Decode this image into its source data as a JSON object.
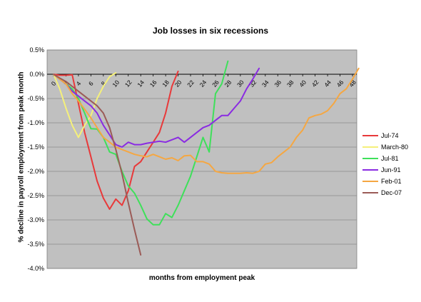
{
  "chart_data": {
    "type": "line",
    "title": "Job losses in six recessions",
    "xlabel": "months from employment peak",
    "ylabel": "% decline in payroll employment from peak month",
    "xlim": [
      0,
      49
    ],
    "ylim": [
      -4.0,
      0.5
    ],
    "x_ticks": [
      0,
      2,
      4,
      6,
      8,
      10,
      12,
      14,
      16,
      18,
      20,
      22,
      24,
      26,
      28,
      30,
      32,
      34,
      36,
      38,
      40,
      42,
      44,
      46,
      48
    ],
    "y_ticks": [
      "0.5%",
      "0.0%",
      "-0.5%",
      "-1.0%",
      "-1.5%",
      "-2.0%",
      "-2.5%",
      "-3.0%",
      "-3.5%",
      "-4.0%"
    ],
    "y_tick_values": [
      0.5,
      0.0,
      -0.5,
      -1.0,
      -1.5,
      -2.0,
      -2.5,
      -3.0,
      -3.5,
      -4.0
    ],
    "grid": "horizontal",
    "background": "#c0c0c0",
    "legend_position": "right",
    "series": [
      {
        "name": "Jul-74",
        "color": "#e8393a",
        "values": [
          0,
          -0.02,
          -0.02,
          -0.01,
          -0.6,
          -1.2,
          -1.7,
          -2.2,
          -2.55,
          -2.78,
          -2.57,
          -2.7,
          -2.4,
          -1.9,
          -1.8,
          -1.6,
          -1.4,
          -1.2,
          -0.8,
          -0.25,
          0.06
        ]
      },
      {
        "name": "March-80",
        "color": "#f5f07a",
        "values": [
          0,
          -0.3,
          -0.7,
          -1.05,
          -1.3,
          -1.05,
          -0.85,
          -0.5,
          -0.25,
          -0.05,
          0.03
        ]
      },
      {
        "name": "Jul-81",
        "color": "#3ee05a",
        "values": [
          0,
          -0.1,
          -0.2,
          -0.3,
          -0.5,
          -0.8,
          -1.12,
          -1.13,
          -1.3,
          -1.6,
          -1.65,
          -2.0,
          -2.3,
          -2.45,
          -2.7,
          -2.98,
          -3.1,
          -3.1,
          -2.87,
          -2.95,
          -2.7,
          -2.4,
          -2.1,
          -1.7,
          -1.3,
          -1.6,
          -0.4,
          -0.2,
          0.27
        ]
      },
      {
        "name": "Jun-91",
        "color": "#8a2be2",
        "values": [
          0,
          -0.1,
          -0.2,
          -0.35,
          -0.45,
          -0.55,
          -0.65,
          -0.8,
          -1.05,
          -1.25,
          -1.45,
          -1.5,
          -1.4,
          -1.45,
          -1.45,
          -1.42,
          -1.4,
          -1.38,
          -1.4,
          -1.35,
          -1.3,
          -1.4,
          -1.3,
          -1.2,
          -1.1,
          -1.05,
          -0.95,
          -0.85,
          -0.85,
          -0.7,
          -0.55,
          -0.3,
          -0.1,
          0.12
        ]
      },
      {
        "name": "Feb-01",
        "color": "#f5a742",
        "values": [
          0,
          -0.1,
          -0.2,
          -0.4,
          -0.55,
          -0.72,
          -0.9,
          -1.1,
          -1.3,
          -1.4,
          -1.5,
          -1.55,
          -1.6,
          -1.65,
          -1.68,
          -1.7,
          -1.65,
          -1.7,
          -1.75,
          -1.72,
          -1.78,
          -1.68,
          -1.67,
          -1.8,
          -1.8,
          -1.85,
          -2.0,
          -2.03,
          -2.04,
          -2.04,
          -2.04,
          -2.03,
          -2.04,
          -2.0,
          -1.85,
          -1.82,
          -1.7,
          -1.6,
          -1.5,
          -1.3,
          -1.15,
          -0.9,
          -0.85,
          -0.82,
          -0.75,
          -0.6,
          -0.4,
          -0.3,
          -0.1,
          0.12
        ]
      },
      {
        "name": "Dec-07",
        "color": "#9b5b57",
        "values": [
          0,
          -0.08,
          -0.15,
          -0.25,
          -0.35,
          -0.45,
          -0.55,
          -0.65,
          -0.8,
          -1.1,
          -1.55,
          -2.05,
          -2.65,
          -3.2,
          -3.72
        ]
      }
    ]
  }
}
